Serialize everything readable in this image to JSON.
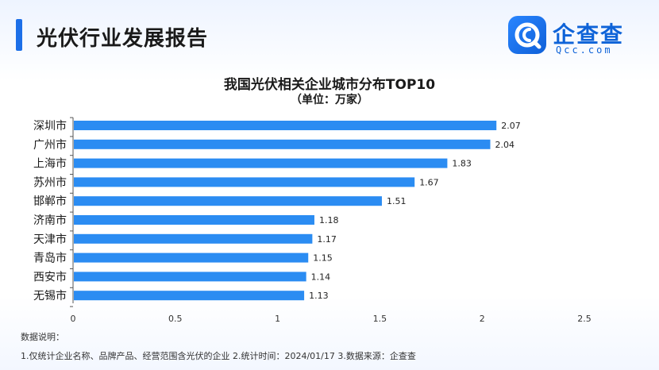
{
  "header": {
    "title": "光伏行业发展报告"
  },
  "logo": {
    "name": "企查查",
    "domain": "Qcc.com"
  },
  "colors": {
    "accent": "#1c6fe8",
    "bar": "#2b8cf2",
    "axis": "#555555"
  },
  "chart_data": {
    "type": "bar",
    "orientation": "horizontal",
    "title": "我国光伏相关企业城市分布TOP10",
    "subtitle": "（单位：万家）",
    "categories": [
      "深圳市",
      "广州市",
      "上海市",
      "苏州市",
      "邯郸市",
      "济南市",
      "天津市",
      "青岛市",
      "西安市",
      "无锡市"
    ],
    "values": [
      2.07,
      2.04,
      1.83,
      1.67,
      1.51,
      1.18,
      1.17,
      1.15,
      1.14,
      1.13
    ],
    "value_labels": [
      "2.07",
      "2.04",
      "1.83",
      "1.67",
      "1.51",
      "1.18",
      "1.17",
      "1.15",
      "1.14",
      "1.13"
    ],
    "xlim": [
      0,
      2.5
    ],
    "xticks": [
      0,
      0.5,
      1,
      1.5,
      2,
      2.5
    ],
    "xtick_labels": [
      "0",
      "0.5",
      "1",
      "1.5",
      "2",
      "2.5"
    ],
    "grid": false,
    "legend": "none"
  },
  "notes": {
    "title": "数据说明：",
    "text": "1.仅统计企业名称、品牌产品、经营范围含光伏的企业   2.统计时间：2024/01/17   3.数据来源：企查查"
  }
}
